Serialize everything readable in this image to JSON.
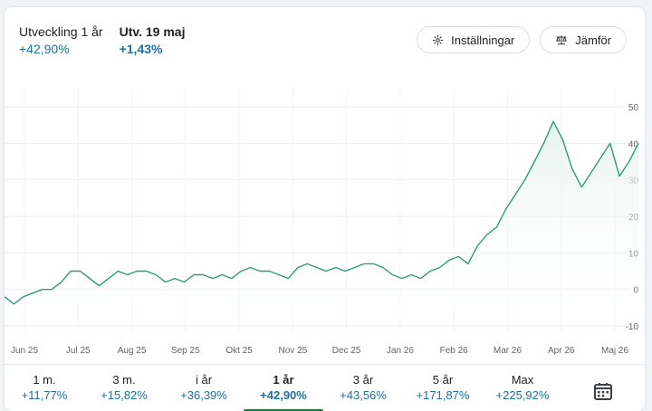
{
  "header": {
    "perf_label": "Utveckling 1 år",
    "perf_value": "+42,90%",
    "day_label": "Utv. 19 maj",
    "day_value": "+1,43%"
  },
  "buttons": {
    "settings": "Inställningar",
    "settings_icon": "gear-icon",
    "compare": "Jämför",
    "compare_icon": "balance-scale-icon"
  },
  "tabs": [
    {
      "label": "1 m.",
      "value": "+11,77%"
    },
    {
      "label": "3 m.",
      "value": "+15,82%"
    },
    {
      "label": "i år",
      "value": "+36,39%"
    },
    {
      "label": "1 år",
      "value": "+42,90%",
      "active": true
    },
    {
      "label": "3 år",
      "value": "+43,56%"
    },
    {
      "label": "5 år",
      "value": "+171,87%"
    },
    {
      "label": "Max",
      "value": "+225,92%"
    }
  ],
  "calendar_icon": "calendar-icon",
  "colors": {
    "line": "#2e9c78",
    "fill": "#e4f3ee",
    "value_text": "#1f6f9f",
    "active_tab": "#188038"
  },
  "chart_data": {
    "type": "area",
    "x_tick_labels": [
      "Jun 25",
      "Jul 25",
      "Aug 25",
      "Sep 25",
      "Okt 25",
      "Nov 25",
      "Dec 25",
      "Jan 26",
      "Feb 26",
      "Mar 26",
      "Apr 26",
      "Maj 26"
    ],
    "y_ticks": [
      50,
      40,
      30,
      20,
      10,
      0,
      -10
    ],
    "ylim": [
      -10,
      50
    ],
    "grid": true,
    "series": [
      {
        "values": [
          [
            0,
            -2
          ],
          [
            2,
            -4
          ],
          [
            4,
            -2
          ],
          [
            6,
            -1
          ],
          [
            8,
            0
          ],
          [
            10,
            0
          ],
          [
            12,
            2
          ],
          [
            14,
            5
          ],
          [
            16,
            5
          ],
          [
            18,
            3
          ],
          [
            20,
            1
          ],
          [
            22,
            3
          ],
          [
            24,
            5
          ],
          [
            26,
            4
          ],
          [
            28,
            5
          ],
          [
            30,
            5
          ],
          [
            32,
            4
          ],
          [
            34,
            2
          ],
          [
            36,
            3
          ],
          [
            38,
            2
          ],
          [
            40,
            4
          ],
          [
            42,
            4
          ],
          [
            44,
            3
          ],
          [
            46,
            4
          ],
          [
            48,
            3
          ],
          [
            50,
            5
          ],
          [
            52,
            6
          ],
          [
            54,
            5
          ],
          [
            56,
            5
          ],
          [
            58,
            4
          ],
          [
            60,
            3
          ],
          [
            62,
            6
          ],
          [
            64,
            7
          ],
          [
            66,
            6
          ],
          [
            68,
            5
          ],
          [
            70,
            6
          ],
          [
            72,
            5
          ],
          [
            74,
            6
          ],
          [
            76,
            7
          ],
          [
            78,
            7
          ],
          [
            80,
            6
          ],
          [
            82,
            4
          ],
          [
            84,
            3
          ],
          [
            86,
            4
          ],
          [
            88,
            3
          ],
          [
            90,
            5
          ],
          [
            92,
            6
          ],
          [
            94,
            8
          ],
          [
            96,
            9
          ],
          [
            98,
            7
          ],
          [
            100,
            12
          ],
          [
            102,
            15
          ],
          [
            104,
            17
          ],
          [
            106,
            22
          ],
          [
            108,
            26
          ],
          [
            110,
            30
          ],
          [
            112,
            35
          ],
          [
            114,
            40
          ],
          [
            116,
            46
          ],
          [
            118,
            41
          ],
          [
            120,
            33
          ],
          [
            122,
            28
          ],
          [
            124,
            32
          ],
          [
            126,
            36
          ],
          [
            128,
            40
          ],
          [
            130,
            31
          ],
          [
            132,
            35
          ],
          [
            134,
            40
          ]
        ]
      }
    ]
  }
}
